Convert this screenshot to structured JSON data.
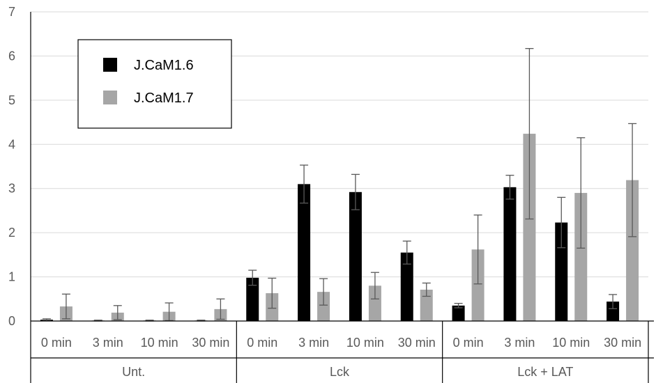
{
  "chart_data": {
    "type": "bar",
    "title": "",
    "xlabel": "",
    "ylabel": "",
    "ylim": [
      0,
      7
    ],
    "yticks": [
      0,
      1,
      2,
      3,
      4,
      5,
      6,
      7
    ],
    "grid": true,
    "legend_position": "top-left",
    "groups": [
      {
        "label": "Unt.",
        "categories": [
          "0 min",
          "3 min",
          "10 min",
          "30 min"
        ]
      },
      {
        "label": "Lck",
        "categories": [
          "0 min",
          "3 min",
          "10 min",
          "30 min"
        ]
      },
      {
        "label": "Lck + LAT",
        "categories": [
          "0 min",
          "3 min",
          "10 min",
          "30 min"
        ]
      }
    ],
    "series": [
      {
        "name": "J.CaM1.6",
        "color": "#000000",
        "values": [
          0.03,
          0.01,
          0.01,
          0.01,
          0.98,
          3.1,
          2.92,
          1.55,
          0.35,
          3.03,
          2.23,
          0.44
        ],
        "errors": [
          0.02,
          0.01,
          0.01,
          0.01,
          0.17,
          0.43,
          0.4,
          0.26,
          0.05,
          0.27,
          0.57,
          0.16
        ]
      },
      {
        "name": "J.CaM1.7",
        "color": "#a6a6a6",
        "values": [
          0.33,
          0.19,
          0.21,
          0.27,
          0.63,
          0.66,
          0.8,
          0.71,
          1.62,
          4.24,
          2.9,
          3.19
        ],
        "errors": [
          0.28,
          0.16,
          0.2,
          0.23,
          0.34,
          0.3,
          0.3,
          0.15,
          0.78,
          1.93,
          1.25,
          1.28
        ]
      }
    ]
  }
}
